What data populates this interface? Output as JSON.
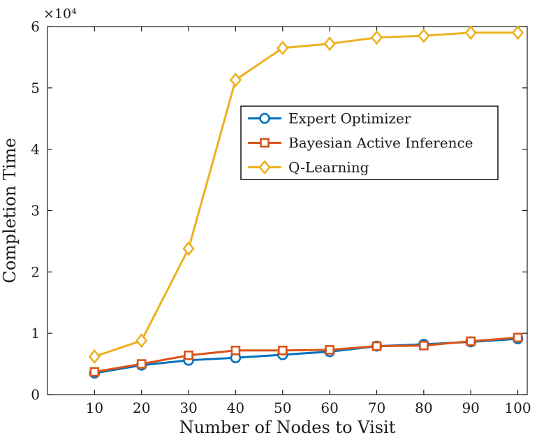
{
  "chart_data": {
    "type": "line",
    "title": "",
    "xlabel": "Number of Nodes to Visit",
    "ylabel": "Completion Time",
    "y_multiplier_label": "×10⁴",
    "x": [
      10,
      20,
      30,
      40,
      50,
      60,
      70,
      80,
      90,
      100
    ],
    "xlim": [
      0,
      102
    ],
    "ylim": [
      0,
      60000
    ],
    "xticks": [
      10,
      20,
      30,
      40,
      50,
      60,
      70,
      80,
      90,
      100
    ],
    "xtick_labels": [
      "10",
      "20",
      "30",
      "40",
      "50",
      "60",
      "70",
      "80",
      "90",
      "100"
    ],
    "yticks": [
      0,
      10000,
      20000,
      30000,
      40000,
      50000,
      60000
    ],
    "ytick_labels": [
      "0",
      "1",
      "2",
      "3",
      "4",
      "5",
      "6"
    ],
    "grid": false,
    "legend_position": "inside-upper-middle",
    "axis_color": "#1a1a1a",
    "series": [
      {
        "name": "Expert Optimizer",
        "color": "#0072BD",
        "marker": "circle",
        "values": [
          3500,
          4800,
          5600,
          6000,
          6500,
          7000,
          7900,
          8200,
          8600,
          9100
        ]
      },
      {
        "name": "Bayesian Active Inference",
        "color": "#D95319",
        "marker": "square",
        "values": [
          3700,
          5000,
          6400,
          7200,
          7200,
          7300,
          7900,
          8000,
          8700,
          9300
        ]
      },
      {
        "name": "Q-Learning",
        "color": "#EDB120",
        "marker": "diamond",
        "values": [
          6200,
          8800,
          23800,
          51300,
          56500,
          57200,
          58200,
          58500,
          59000,
          59000
        ]
      }
    ]
  }
}
